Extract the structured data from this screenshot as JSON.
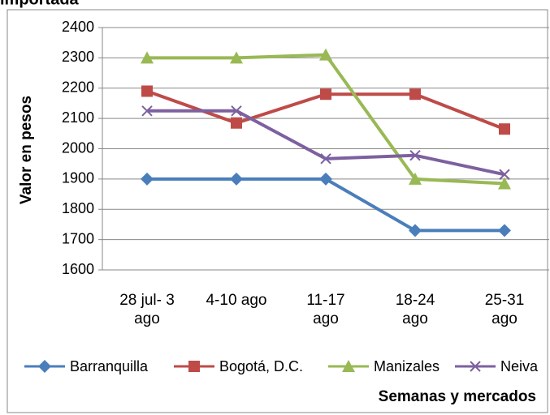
{
  "chart_data": {
    "type": "line",
    "title": "importada",
    "x_label": "Semanas y mercados",
    "y_label": "Valor en pesos",
    "categories": [
      "28 jul- 3 ago",
      "4-10 ago",
      "11-17 ago",
      "18-24 ago",
      "25-31 ago"
    ],
    "series": [
      {
        "name": "Barranquilla",
        "color": "#4a7ebb",
        "marker": "diamond",
        "values": [
          1900,
          1900,
          1900,
          1730,
          1730
        ]
      },
      {
        "name": "Bogotá, D.C.",
        "color": "#be4b48",
        "marker": "square",
        "values": [
          2190,
          2085,
          2180,
          2180,
          2065
        ]
      },
      {
        "name": "Manizales",
        "color": "#98b954",
        "marker": "triangle",
        "values": [
          2300,
          2300,
          2310,
          1900,
          1885
        ]
      },
      {
        "name": "Neiva",
        "color": "#7d60a0",
        "marker": "x",
        "values": [
          2125,
          2125,
          1967,
          1978,
          1915
        ]
      }
    ],
    "ylim": [
      1600,
      2400
    ],
    "yticks": [
      1600,
      1700,
      1800,
      1900,
      2000,
      2100,
      2200,
      2300,
      2400
    ],
    "grid": true,
    "legend": "bottom"
  }
}
